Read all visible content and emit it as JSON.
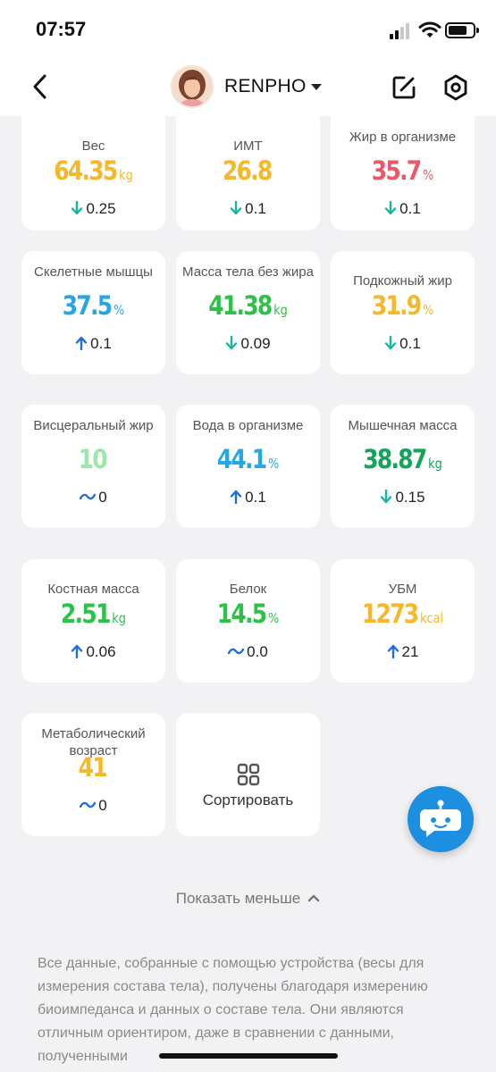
{
  "status_bar": {
    "time": "07:57"
  },
  "header": {
    "user_name": "RENPHO"
  },
  "colors": {
    "yellow": "#f4b82a",
    "red": "#e85a6a",
    "blue": "#27a6e6",
    "green": "#2ec14a",
    "light_green": "#9be6a8",
    "dark_green": "#14a35a",
    "arrow_down": "#17b5a0",
    "arrow_up": "#1f6fd6",
    "accent_blue": "#1d8fe0"
  },
  "metrics": [
    {
      "label": "Вес",
      "value": "64.35",
      "unit": "kg",
      "color": "#f4b82a",
      "trend": "down",
      "change": "0.25"
    },
    {
      "label": "ИМТ",
      "value": "26.8",
      "unit": "",
      "color": "#f4b82a",
      "trend": "down",
      "change": "0.1"
    },
    {
      "label": "Жир в организме",
      "value": "35.7",
      "unit": "%",
      "color": "#e85a6a",
      "trend": "down",
      "change": "0.1"
    },
    {
      "label": "Скелетные мышцы",
      "value": "37.5",
      "unit": "%",
      "color": "#27a6e6",
      "trend": "up",
      "change": "0.1"
    },
    {
      "label": "Масса тела без жира",
      "value": "41.38",
      "unit": "kg",
      "color": "#2ec14a",
      "trend": "down",
      "change": "0.09"
    },
    {
      "label": "Подкожный жир",
      "value": "31.9",
      "unit": "%",
      "color": "#f4b82a",
      "trend": "down",
      "change": "0.1"
    },
    {
      "label": "Висцеральный жир",
      "value": "10",
      "unit": "",
      "color": "#9be6a8",
      "trend": "flat",
      "change": "0"
    },
    {
      "label": "Вода в организме",
      "value": "44.1",
      "unit": "%",
      "color": "#27a6e6",
      "trend": "up",
      "change": "0.1"
    },
    {
      "label": "Мышечная масса",
      "value": "38.87",
      "unit": "kg",
      "color": "#14a35a",
      "trend": "down",
      "change": "0.15"
    },
    {
      "label": "Костная масса",
      "value": "2.51",
      "unit": "kg",
      "color": "#2ec14a",
      "trend": "up",
      "change": "0.06"
    },
    {
      "label": "Белок",
      "value": "14.5",
      "unit": "%",
      "color": "#2ec14a",
      "trend": "flat",
      "change": "0.0"
    },
    {
      "label": "УБМ",
      "value": "1273",
      "unit": "kcal",
      "color": "#f4b82a",
      "trend": "up",
      "change": "21"
    },
    {
      "label": "Метаболический возраст",
      "value": "41",
      "unit": "",
      "color": "#f4b82a",
      "trend": "flat",
      "change": "0"
    }
  ],
  "sort_tile": {
    "label": "Сортировать",
    "icon": "sort-grid-icon"
  },
  "show_less": {
    "label": "Показать меньше"
  },
  "disclaimer": "Все данные, собранные с помощью устройства (весы для измерения состава тела), получены благодаря измерению биоимпеданса и данных о составе тела. Они являются отличным ориентиром, даже в сравнении с данными, полученными"
}
